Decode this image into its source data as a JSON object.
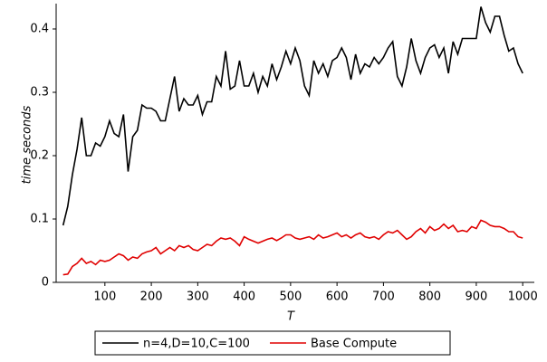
{
  "chart_data": {
    "type": "line",
    "x_label": "T",
    "y_label": "time seconds",
    "x": [
      10,
      20,
      30,
      40,
      50,
      60,
      70,
      80,
      90,
      100,
      110,
      120,
      130,
      140,
      150,
      160,
      170,
      180,
      190,
      200,
      210,
      220,
      230,
      240,
      250,
      260,
      270,
      280,
      290,
      300,
      310,
      320,
      330,
      340,
      350,
      360,
      370,
      380,
      390,
      400,
      410,
      420,
      430,
      440,
      450,
      460,
      470,
      480,
      490,
      500,
      510,
      520,
      530,
      540,
      550,
      560,
      570,
      580,
      590,
      600,
      610,
      620,
      630,
      640,
      650,
      660,
      670,
      680,
      690,
      700,
      710,
      720,
      730,
      740,
      750,
      760,
      770,
      780,
      790,
      800,
      810,
      820,
      830,
      840,
      850,
      860,
      870,
      880,
      890,
      900,
      910,
      920,
      930,
      940,
      950,
      960,
      970,
      980,
      990,
      1000
    ],
    "series": [
      {
        "name": "n=4,D=10,C=100",
        "color": "#000000",
        "values": [
          0.09,
          0.12,
          0.17,
          0.21,
          0.26,
          0.2,
          0.2,
          0.22,
          0.215,
          0.23,
          0.255,
          0.235,
          0.23,
          0.265,
          0.175,
          0.23,
          0.24,
          0.28,
          0.275,
          0.275,
          0.27,
          0.255,
          0.255,
          0.29,
          0.325,
          0.27,
          0.29,
          0.28,
          0.28,
          0.295,
          0.265,
          0.285,
          0.285,
          0.325,
          0.31,
          0.365,
          0.305,
          0.31,
          0.35,
          0.31,
          0.31,
          0.33,
          0.3,
          0.325,
          0.31,
          0.345,
          0.32,
          0.34,
          0.365,
          0.345,
          0.37,
          0.35,
          0.31,
          0.295,
          0.35,
          0.33,
          0.345,
          0.325,
          0.35,
          0.355,
          0.37,
          0.355,
          0.32,
          0.36,
          0.33,
          0.345,
          0.34,
          0.355,
          0.345,
          0.355,
          0.37,
          0.38,
          0.325,
          0.31,
          0.34,
          0.385,
          0.35,
          0.33,
          0.355,
          0.37,
          0.375,
          0.355,
          0.37,
          0.33,
          0.38,
          0.36,
          0.385,
          0.385,
          0.385,
          0.385,
          0.435,
          0.41,
          0.395,
          0.42,
          0.42,
          0.39,
          0.365,
          0.37,
          0.345,
          0.33
        ]
      },
      {
        "name": "Base Compute",
        "color": "#e00000",
        "values": [
          0.012,
          0.013,
          0.025,
          0.03,
          0.038,
          0.03,
          0.033,
          0.028,
          0.035,
          0.033,
          0.035,
          0.04,
          0.045,
          0.042,
          0.035,
          0.04,
          0.038,
          0.045,
          0.048,
          0.05,
          0.055,
          0.045,
          0.05,
          0.055,
          0.05,
          0.058,
          0.055,
          0.058,
          0.052,
          0.05,
          0.055,
          0.06,
          0.058,
          0.065,
          0.07,
          0.068,
          0.07,
          0.065,
          0.058,
          0.072,
          0.068,
          0.065,
          0.062,
          0.065,
          0.068,
          0.07,
          0.066,
          0.07,
          0.075,
          0.075,
          0.07,
          0.068,
          0.07,
          0.072,
          0.068,
          0.075,
          0.07,
          0.072,
          0.075,
          0.078,
          0.072,
          0.075,
          0.07,
          0.075,
          0.078,
          0.072,
          0.07,
          0.072,
          0.068,
          0.075,
          0.08,
          0.078,
          0.082,
          0.075,
          0.068,
          0.072,
          0.08,
          0.085,
          0.078,
          0.088,
          0.082,
          0.085,
          0.092,
          0.085,
          0.09,
          0.08,
          0.082,
          0.08,
          0.088,
          0.085,
          0.098,
          0.095,
          0.09,
          0.088,
          0.088,
          0.085,
          0.08,
          0.08,
          0.072,
          0.07
        ]
      }
    ],
    "xlim": [
      -5,
      1025
    ],
    "ylim": [
      0,
      0.44
    ],
    "xticks": [
      100,
      200,
      300,
      400,
      500,
      600,
      700,
      800,
      900,
      1000
    ],
    "yticks": [
      0,
      0.1,
      0.2,
      0.3,
      0.4
    ],
    "grid": false
  }
}
